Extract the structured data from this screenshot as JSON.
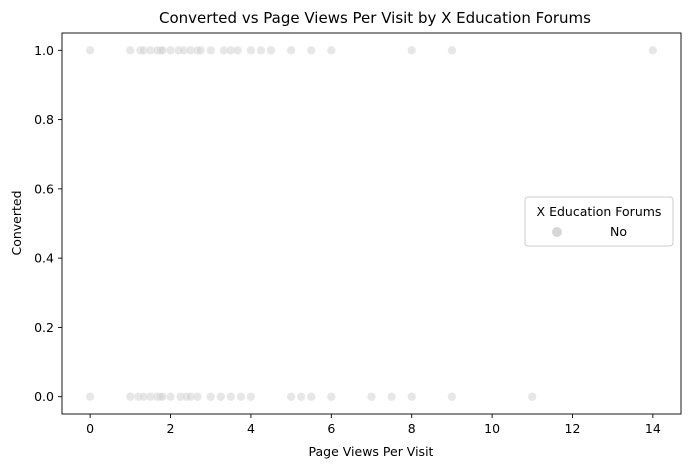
{
  "chart_data": {
    "type": "scatter",
    "title": "Converted vs Page Views Per Visit by X Education Forums",
    "xlabel": "Page Views Per Visit",
    "ylabel": "Converted",
    "xlim": [
      -0.7,
      14.7
    ],
    "ylim": [
      -0.05,
      1.05
    ],
    "x_ticks": [
      0,
      2,
      4,
      6,
      8,
      10,
      12,
      14
    ],
    "x_tick_labels": [
      "0",
      "2",
      "4",
      "6",
      "8",
      "10",
      "12",
      "14"
    ],
    "y_ticks": [
      0.0,
      0.2,
      0.4,
      0.6,
      0.8,
      1.0
    ],
    "y_tick_labels": [
      "0.0",
      "0.2",
      "0.4",
      "0.6",
      "0.8",
      "1.0"
    ],
    "grid": false,
    "legend": {
      "title": "X Education Forums",
      "placement": "center-right",
      "entries": [
        "No"
      ]
    },
    "marker_color": "#d3d3d3",
    "series": [
      {
        "name": "No",
        "points": [
          {
            "x": 0,
            "y": 1
          },
          {
            "x": 1,
            "y": 1
          },
          {
            "x": 1.25,
            "y": 1
          },
          {
            "x": 1.33,
            "y": 1
          },
          {
            "x": 1.5,
            "y": 1
          },
          {
            "x": 1.67,
            "y": 1
          },
          {
            "x": 1.75,
            "y": 1
          },
          {
            "x": 1.8,
            "y": 1
          },
          {
            "x": 2,
            "y": 1
          },
          {
            "x": 2.2,
            "y": 1
          },
          {
            "x": 2.33,
            "y": 1
          },
          {
            "x": 2.5,
            "y": 1
          },
          {
            "x": 2.67,
            "y": 1
          },
          {
            "x": 2.75,
            "y": 1
          },
          {
            "x": 3,
            "y": 1
          },
          {
            "x": 3.33,
            "y": 1
          },
          {
            "x": 3.5,
            "y": 1
          },
          {
            "x": 3.67,
            "y": 1
          },
          {
            "x": 4,
            "y": 1
          },
          {
            "x": 4.25,
            "y": 1
          },
          {
            "x": 4.5,
            "y": 1
          },
          {
            "x": 5,
            "y": 1
          },
          {
            "x": 5.5,
            "y": 1
          },
          {
            "x": 6,
            "y": 1
          },
          {
            "x": 8,
            "y": 1
          },
          {
            "x": 9,
            "y": 1
          },
          {
            "x": 14,
            "y": 1
          },
          {
            "x": 0,
            "y": 0
          },
          {
            "x": 1,
            "y": 0
          },
          {
            "x": 1.2,
            "y": 0
          },
          {
            "x": 1.33,
            "y": 0
          },
          {
            "x": 1.5,
            "y": 0
          },
          {
            "x": 1.67,
            "y": 0
          },
          {
            "x": 1.75,
            "y": 0
          },
          {
            "x": 1.8,
            "y": 0
          },
          {
            "x": 2,
            "y": 0
          },
          {
            "x": 2.25,
            "y": 0
          },
          {
            "x": 2.4,
            "y": 0
          },
          {
            "x": 2.5,
            "y": 0
          },
          {
            "x": 2.67,
            "y": 0
          },
          {
            "x": 3,
            "y": 0
          },
          {
            "x": 3.25,
            "y": 0
          },
          {
            "x": 3.5,
            "y": 0
          },
          {
            "x": 3.75,
            "y": 0
          },
          {
            "x": 4,
            "y": 0
          },
          {
            "x": 5,
            "y": 0
          },
          {
            "x": 5.25,
            "y": 0
          },
          {
            "x": 5.5,
            "y": 0
          },
          {
            "x": 6,
            "y": 0
          },
          {
            "x": 7,
            "y": 0
          },
          {
            "x": 7.5,
            "y": 0
          },
          {
            "x": 8,
            "y": 0
          },
          {
            "x": 9,
            "y": 0
          },
          {
            "x": 11,
            "y": 0
          }
        ]
      }
    ]
  }
}
